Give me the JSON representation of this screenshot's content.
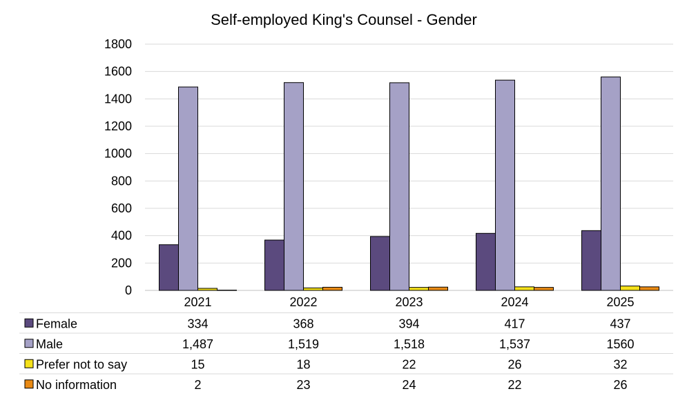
{
  "chart_data": {
    "type": "bar",
    "title": "Self-employed King's Counsel - Gender",
    "categories": [
      "2021",
      "2022",
      "2023",
      "2024",
      "2025"
    ],
    "y_ticks": [
      "0",
      "200",
      "400",
      "600",
      "800",
      "1000",
      "1200",
      "1400",
      "1600",
      "1800"
    ],
    "ylim": [
      0,
      1800
    ],
    "grid": true,
    "legend": "data-table-below",
    "series": [
      {
        "name": "Female",
        "color": "#5b4a7e",
        "values": [
          334,
          368,
          394,
          417,
          437
        ],
        "labels": [
          "334",
          "368",
          "394",
          "417",
          "437"
        ]
      },
      {
        "name": "Male",
        "color": "#a5a1c6",
        "values": [
          1487,
          1519,
          1518,
          1537,
          1560
        ],
        "labels": [
          "1,487",
          "1,519",
          "1,518",
          "1,537",
          "1560"
        ]
      },
      {
        "name": "Prefer not to say",
        "color": "#f5e11a",
        "values": [
          15,
          18,
          22,
          26,
          32
        ],
        "labels": [
          "15",
          "18",
          "22",
          "26",
          "32"
        ]
      },
      {
        "name": "No information",
        "color": "#e98a14",
        "values": [
          2,
          23,
          24,
          22,
          26
        ],
        "labels": [
          "2",
          "23",
          "24",
          "22",
          "26"
        ]
      }
    ]
  }
}
